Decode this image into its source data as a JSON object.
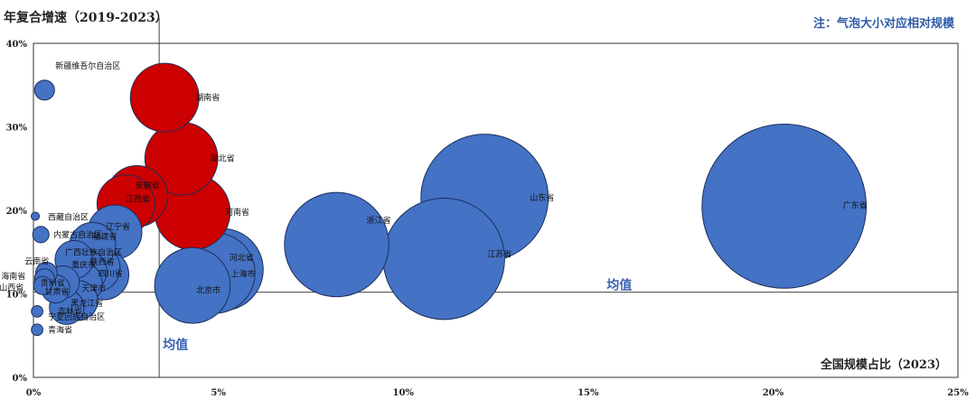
{
  "chart_data": {
    "type": "bubble",
    "title": "年复合增速（2019-2023）",
    "note": "注：气泡大小对应相对规模",
    "xlabel": "全国规模占比（2023）",
    "ylabel": "年复合增速（2019-2023）",
    "xlim": [
      0,
      25
    ],
    "ylim": [
      0,
      40
    ],
    "x_ticks": [
      "0%",
      "5%",
      "10%",
      "15%",
      "20%",
      "25%"
    ],
    "y_ticks": [
      "0%",
      "10%",
      "20%",
      "30%",
      "40%"
    ],
    "mean_x": 3.4,
    "mean_y": 10.2,
    "mean_label": "均值",
    "colors": {
      "high_growth": "#cc0000",
      "normal": "#4472c4",
      "edge": "#1c2f5c"
    },
    "points": [
      {
        "name": "广东省",
        "x": 20.3,
        "y": 20.5,
        "size": 20.3,
        "group": "normal"
      },
      {
        "name": "山东省",
        "x": 12.2,
        "y": 21.5,
        "size": 12.2,
        "group": "normal"
      },
      {
        "name": "江苏省",
        "x": 11.1,
        "y": 14.2,
        "size": 11.1,
        "group": "normal"
      },
      {
        "name": "浙江省",
        "x": 8.2,
        "y": 15.9,
        "size": 8.2,
        "group": "normal"
      },
      {
        "name": "湖南省",
        "x": 3.55,
        "y": 33.5,
        "size": 3.55,
        "group": "high"
      },
      {
        "name": "湖北省",
        "x": 4.0,
        "y": 26.2,
        "size": 4.0,
        "group": "high"
      },
      {
        "name": "安徽省",
        "x": 2.8,
        "y": 21.7,
        "size": 2.8,
        "group": "high"
      },
      {
        "name": "江西省",
        "x": 2.5,
        "y": 20.8,
        "size": 2.5,
        "group": "high"
      },
      {
        "name": "河南省",
        "x": 4.3,
        "y": 19.8,
        "size": 4.3,
        "group": "high"
      },
      {
        "name": "河北省",
        "x": 5.1,
        "y": 12.9,
        "size": 5.1,
        "group": "normal"
      },
      {
        "name": "上海市",
        "x": 4.9,
        "y": 12.5,
        "size": 4.9,
        "group": "normal"
      },
      {
        "name": "北京市",
        "x": 4.3,
        "y": 11.0,
        "size": 4.3,
        "group": "normal"
      },
      {
        "name": "辽宁省",
        "x": 2.2,
        "y": 17.4,
        "size": 2.2,
        "group": "normal"
      },
      {
        "name": "福建省",
        "x": 1.6,
        "y": 15.8,
        "size": 1.6,
        "group": "normal"
      },
      {
        "name": "广西壮族自治区",
        "x": 1.1,
        "y": 14.1,
        "size": 1.1,
        "group": "normal"
      },
      {
        "name": "陕西省",
        "x": 1.7,
        "y": 13.1,
        "size": 1.7,
        "group": "normal"
      },
      {
        "name": "重庆市",
        "x": 1.4,
        "y": 12.7,
        "size": 1.4,
        "group": "normal"
      },
      {
        "name": "四川省",
        "x": 1.9,
        "y": 12.3,
        "size": 1.9,
        "group": "normal"
      },
      {
        "name": "天津市",
        "x": 1.3,
        "y": 11.3,
        "size": 1.3,
        "group": "normal"
      },
      {
        "name": "贵州省",
        "x": 0.8,
        "y": 11.4,
        "size": 0.8,
        "group": "normal"
      },
      {
        "name": "甘肃省",
        "x": 0.6,
        "y": 10.6,
        "size": 0.6,
        "group": "normal"
      },
      {
        "name": "黑龙江省",
        "x": 1.2,
        "y": 9.2,
        "size": 1.2,
        "group": "normal"
      },
      {
        "name": "吉林省",
        "x": 0.9,
        "y": 8.4,
        "size": 0.9,
        "group": "normal"
      },
      {
        "name": "云南省",
        "x": 0.35,
        "y": 12.5,
        "size": 0.35,
        "group": "normal"
      },
      {
        "name": "海南省",
        "x": 0.3,
        "y": 11.8,
        "size": 0.3,
        "group": "normal"
      },
      {
        "name": "山西省",
        "x": 0.25,
        "y": 11.0,
        "size": 0.25,
        "group": "normal"
      },
      {
        "name": "新疆维吾尔自治区",
        "x": 0.3,
        "y": 34.4,
        "size": 0.3,
        "group": "normal"
      },
      {
        "name": "西藏自治区",
        "x": 0.05,
        "y": 19.3,
        "size": 0.05,
        "group": "normal"
      },
      {
        "name": "内蒙古自治区",
        "x": 0.2,
        "y": 17.1,
        "size": 0.2,
        "group": "normal"
      },
      {
        "name": "宁夏回族自治区",
        "x": 0.1,
        "y": 7.9,
        "size": 0.1,
        "group": "normal"
      },
      {
        "name": "青海省",
        "x": 0.1,
        "y": 5.7,
        "size": 0.1,
        "group": "normal"
      }
    ]
  }
}
